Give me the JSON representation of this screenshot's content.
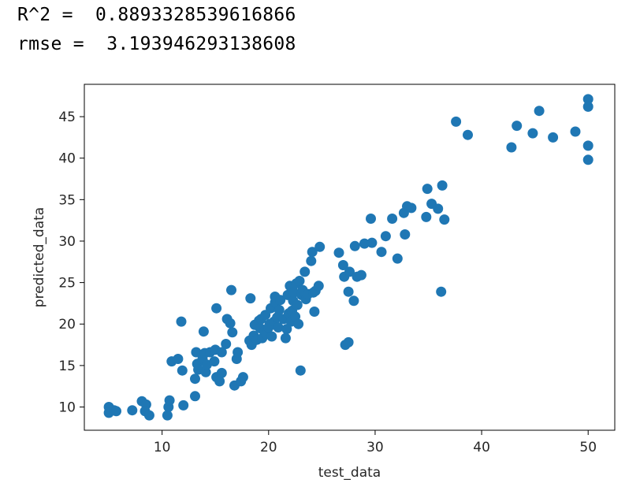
{
  "output": {
    "r2_label": "R^2 =  ",
    "r2_value": "0.8893328539616866",
    "rmse_label": "rmse =  ",
    "rmse_value": "3.193946293138608"
  },
  "colors": {
    "marker": "#1f77b4",
    "axis": "#000000",
    "text": "#262626"
  },
  "chart_data": {
    "type": "scatter",
    "title": "",
    "xlabel": "test_data",
    "ylabel": "predicted_data",
    "xlim": [
      2.7,
      52.5
    ],
    "ylim": [
      7.2,
      48.9
    ],
    "xticks": [
      10,
      20,
      30,
      40,
      50
    ],
    "yticks": [
      10,
      15,
      20,
      25,
      30,
      35,
      40,
      45
    ],
    "grid": false,
    "legend": "none",
    "points": [
      [
        5.0,
        10.0
      ],
      [
        5.0,
        9.3
      ],
      [
        5.5,
        9.6
      ],
      [
        5.7,
        9.5
      ],
      [
        7.2,
        9.6
      ],
      [
        8.1,
        10.7
      ],
      [
        8.5,
        10.3
      ],
      [
        8.4,
        9.5
      ],
      [
        8.8,
        9.0
      ],
      [
        10.5,
        9.0
      ],
      [
        10.6,
        10.0
      ],
      [
        10.7,
        10.8
      ],
      [
        10.9,
        15.5
      ],
      [
        11.5,
        15.8
      ],
      [
        11.8,
        20.3
      ],
      [
        11.9,
        14.4
      ],
      [
        12.0,
        10.2
      ],
      [
        13.1,
        11.3
      ],
      [
        13.1,
        13.4
      ],
      [
        13.2,
        16.6
      ],
      [
        13.3,
        15.2
      ],
      [
        13.4,
        14.5
      ],
      [
        13.8,
        15.8
      ],
      [
        13.9,
        19.1
      ],
      [
        14.0,
        16.5
      ],
      [
        14.1,
        14.2
      ],
      [
        14.2,
        15.1
      ],
      [
        14.5,
        16.6
      ],
      [
        14.9,
        15.5
      ],
      [
        15.0,
        16.9
      ],
      [
        15.1,
        13.6
      ],
      [
        15.1,
        21.9
      ],
      [
        15.4,
        13.1
      ],
      [
        15.6,
        14.1
      ],
      [
        15.6,
        16.6
      ],
      [
        16.0,
        17.6
      ],
      [
        16.1,
        20.6
      ],
      [
        16.4,
        20.1
      ],
      [
        16.5,
        24.1
      ],
      [
        16.6,
        19.0
      ],
      [
        16.8,
        12.6
      ],
      [
        17.0,
        15.8
      ],
      [
        17.1,
        16.6
      ],
      [
        17.4,
        13.1
      ],
      [
        17.6,
        13.6
      ],
      [
        18.2,
        18.0
      ],
      [
        18.3,
        23.1
      ],
      [
        18.4,
        17.5
      ],
      [
        18.6,
        18.6
      ],
      [
        18.7,
        19.9
      ],
      [
        18.9,
        18.1
      ],
      [
        19.1,
        20.4
      ],
      [
        19.2,
        19.5
      ],
      [
        19.3,
        20.6
      ],
      [
        19.4,
        18.3
      ],
      [
        19.6,
        19.1
      ],
      [
        19.7,
        21.1
      ],
      [
        19.8,
        18.8
      ],
      [
        20.0,
        19.6
      ],
      [
        20.1,
        20.0
      ],
      [
        20.2,
        21.9
      ],
      [
        20.3,
        18.5
      ],
      [
        20.5,
        20.3
      ],
      [
        20.6,
        22.6
      ],
      [
        20.6,
        23.3
      ],
      [
        20.8,
        20.8
      ],
      [
        20.9,
        19.6
      ],
      [
        21.0,
        21.7
      ],
      [
        21.1,
        22.9
      ],
      [
        21.4,
        20.6
      ],
      [
        21.6,
        18.3
      ],
      [
        21.7,
        19.4
      ],
      [
        21.8,
        23.5
      ],
      [
        21.9,
        21.3
      ],
      [
        22.0,
        24.6
      ],
      [
        22.1,
        20.3
      ],
      [
        22.2,
        21.6
      ],
      [
        22.3,
        22.8
      ],
      [
        22.4,
        23.8
      ],
      [
        22.5,
        20.9
      ],
      [
        22.6,
        24.9
      ],
      [
        22.7,
        22.3
      ],
      [
        22.8,
        20.0
      ],
      [
        22.9,
        25.2
      ],
      [
        23.0,
        14.4
      ],
      [
        23.1,
        23.5
      ],
      [
        23.2,
        24.1
      ],
      [
        23.4,
        26.3
      ],
      [
        23.5,
        23.0
      ],
      [
        23.7,
        23.6
      ],
      [
        24.0,
        27.6
      ],
      [
        24.1,
        28.7
      ],
      [
        24.2,
        23.8
      ],
      [
        24.3,
        21.5
      ],
      [
        24.4,
        24.0
      ],
      [
        24.7,
        24.6
      ],
      [
        24.8,
        29.3
      ],
      [
        26.6,
        28.6
      ],
      [
        27.0,
        27.1
      ],
      [
        27.1,
        25.7
      ],
      [
        27.2,
        17.5
      ],
      [
        27.5,
        17.8
      ],
      [
        27.5,
        23.9
      ],
      [
        27.6,
        26.3
      ],
      [
        28.0,
        22.8
      ],
      [
        28.1,
        29.4
      ],
      [
        28.3,
        25.7
      ],
      [
        28.7,
        25.9
      ],
      [
        29.0,
        29.7
      ],
      [
        29.6,
        32.7
      ],
      [
        29.7,
        29.8
      ],
      [
        30.6,
        28.7
      ],
      [
        31.0,
        30.6
      ],
      [
        31.6,
        32.7
      ],
      [
        32.1,
        27.9
      ],
      [
        32.7,
        33.4
      ],
      [
        32.8,
        30.8
      ],
      [
        33.0,
        34.2
      ],
      [
        33.4,
        34.0
      ],
      [
        34.8,
        32.9
      ],
      [
        34.9,
        36.3
      ],
      [
        35.3,
        34.5
      ],
      [
        35.9,
        33.9
      ],
      [
        36.2,
        23.9
      ],
      [
        36.3,
        36.7
      ],
      [
        36.5,
        32.6
      ],
      [
        37.6,
        44.4
      ],
      [
        38.7,
        42.8
      ],
      [
        42.8,
        41.3
      ],
      [
        43.3,
        43.9
      ],
      [
        44.8,
        43.0
      ],
      [
        45.4,
        45.7
      ],
      [
        46.7,
        42.5
      ],
      [
        48.8,
        43.2
      ],
      [
        50.0,
        47.1
      ],
      [
        50.0,
        46.2
      ],
      [
        50.0,
        41.5
      ],
      [
        50.0,
        39.8
      ]
    ]
  }
}
